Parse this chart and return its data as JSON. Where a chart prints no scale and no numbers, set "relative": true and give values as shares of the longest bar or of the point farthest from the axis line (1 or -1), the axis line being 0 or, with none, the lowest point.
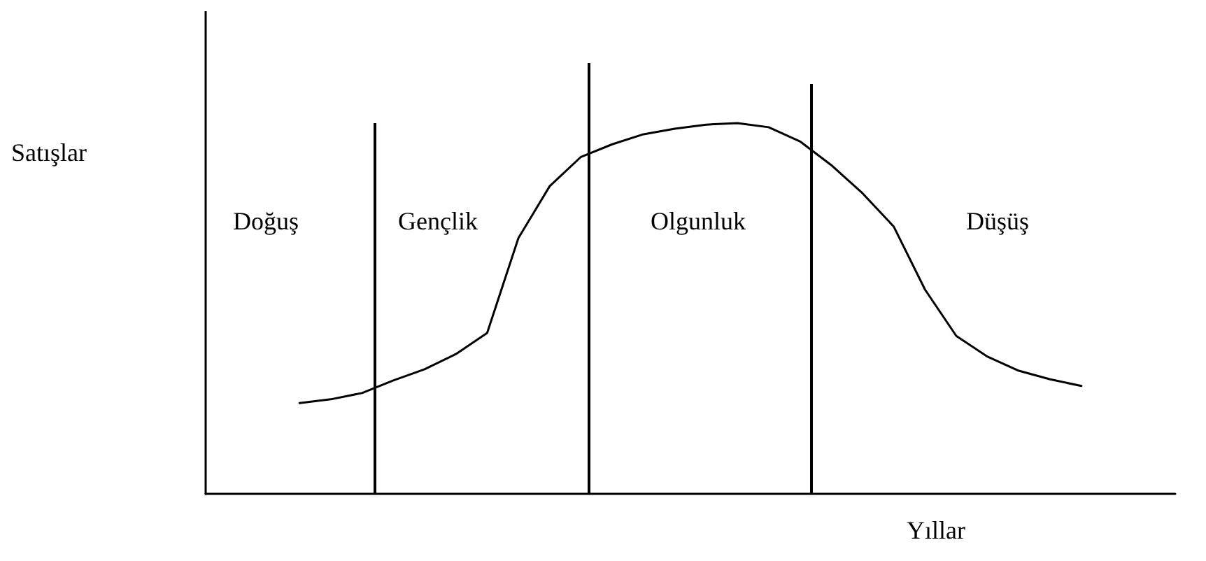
{
  "chart_data": {
    "type": "line",
    "relative": true,
    "ylabel": "Satışlar",
    "xlabel": "Yıllar",
    "color": "#000000",
    "marker": "none",
    "line_style": "solid",
    "categories": [
      null,
      null,
      null,
      null,
      null,
      null,
      null,
      null,
      null,
      null,
      null,
      null,
      null,
      null,
      null,
      null,
      null,
      null,
      null,
      null,
      null,
      null,
      null,
      null,
      null,
      null,
      null,
      null,
      null,
      null,
      null,
      null
    ],
    "values": [
      null,
      null,
      null,
      0.245,
      0.255,
      0.272,
      0.306,
      0.336,
      0.377,
      0.434,
      0.69,
      0.83,
      0.909,
      0.943,
      0.97,
      0.985,
      0.996,
      1,
      0.989,
      0.951,
      0.887,
      0.811,
      0.721,
      0.551,
      0.426,
      0.37,
      0.332,
      0.309,
      0.291,
      null,
      null,
      null
    ],
    "annotations": [
      "Doğuş",
      "Gençlik",
      "Olgunluk",
      "Düşüş"
    ]
  }
}
